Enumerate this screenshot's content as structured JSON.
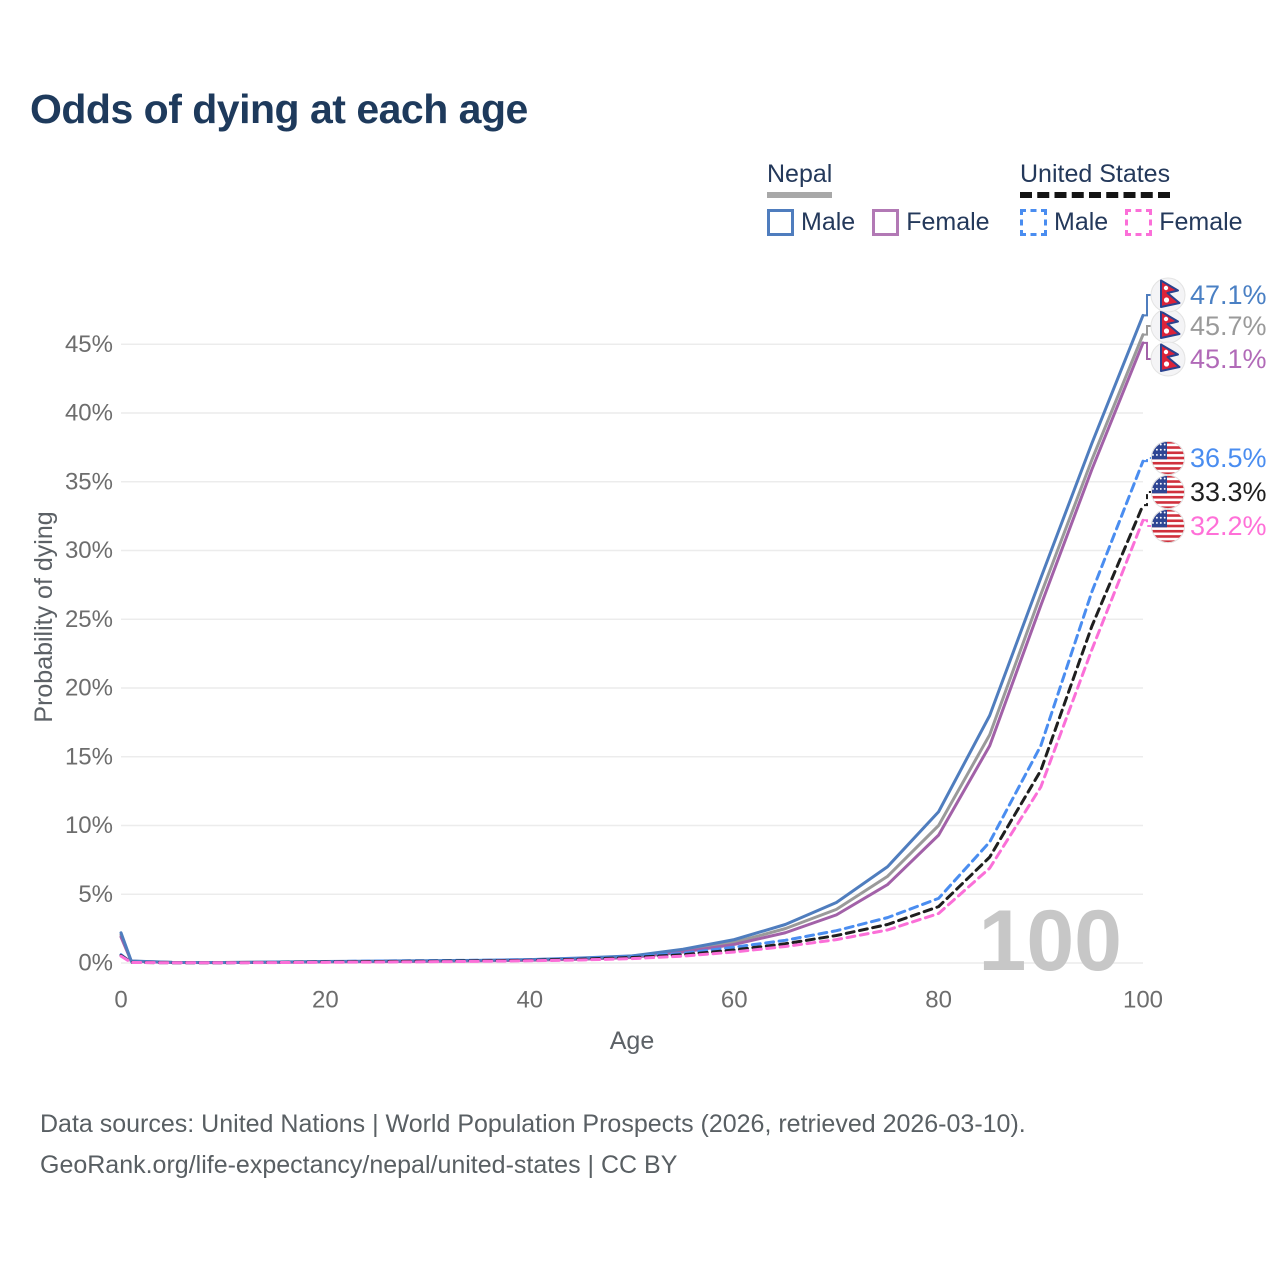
{
  "title": "Odds of dying at each age",
  "legend": {
    "groups": [
      {
        "label": "Nepal",
        "underline": "solid",
        "items": [
          {
            "label": "Male",
            "style": "solid",
            "color": "#4f7dbe"
          },
          {
            "label": "Female",
            "style": "solid",
            "color": "#b279b5"
          }
        ]
      },
      {
        "label": "United States",
        "underline": "dashed",
        "items": [
          {
            "label": "Male",
            "style": "dashed",
            "color": "#4a8df0"
          },
          {
            "label": "Female",
            "style": "dashed",
            "color": "#fb6fd8"
          }
        ]
      }
    ]
  },
  "chart_data": {
    "type": "line",
    "title": "Odds of dying at each age",
    "xlabel": "Age",
    "ylabel": "Probability of dying",
    "xlim": [
      0,
      100
    ],
    "ylim_pct": [
      0,
      48
    ],
    "x_ticks": [
      0,
      20,
      40,
      60,
      80,
      100
    ],
    "y_ticks_pct": [
      0,
      5,
      10,
      15,
      20,
      25,
      30,
      35,
      40,
      45
    ],
    "grid": "horizontal-only",
    "legend_position": "top-right",
    "watermark": "100",
    "watermark_color": "#c7c7c7",
    "ages": [
      0,
      1,
      5,
      10,
      15,
      20,
      25,
      30,
      35,
      40,
      45,
      50,
      55,
      60,
      65,
      70,
      75,
      80,
      85,
      90,
      95,
      100
    ],
    "series": [
      {
        "id": "nepal-total",
        "name": "Nepal",
        "country": "Nepal",
        "sex": "Total",
        "color": "#9a9a9a",
        "label_color": "#9a9a9a",
        "dash": false,
        "flag": "nepal",
        "end_label": "45.7%",
        "values": [
          2.05,
          0.14,
          0.05,
          0.04,
          0.06,
          0.09,
          0.12,
          0.14,
          0.17,
          0.22,
          0.31,
          0.45,
          0.9,
          1.5,
          2.5,
          3.9,
          6.3,
          10.0,
          16.6,
          26.8,
          36.6,
          45.7
        ]
      },
      {
        "id": "nepal-female",
        "name": "Nepal Female",
        "country": "Nepal",
        "sex": "Female",
        "color": "#a261a8",
        "label_color": "#b16ab8",
        "dash": false,
        "flag": "nepal",
        "end_label": "45.1%",
        "values": [
          1.9,
          0.13,
          0.04,
          0.03,
          0.05,
          0.08,
          0.1,
          0.12,
          0.15,
          0.2,
          0.27,
          0.4,
          0.8,
          1.35,
          2.2,
          3.5,
          5.7,
          9.3,
          15.8,
          26.0,
          35.9,
          45.1
        ]
      },
      {
        "id": "nepal-male",
        "name": "Nepal Male",
        "country": "Nepal",
        "sex": "Male",
        "color": "#4f7dbe",
        "label_color": "#4a80c4",
        "dash": false,
        "flag": "nepal",
        "end_label": "47.1%",
        "values": [
          2.2,
          0.15,
          0.05,
          0.04,
          0.07,
          0.11,
          0.14,
          0.16,
          0.19,
          0.25,
          0.36,
          0.52,
          1.0,
          1.7,
          2.8,
          4.4,
          7.0,
          11.0,
          18.0,
          28.0,
          37.8,
          47.1
        ]
      },
      {
        "id": "us-male",
        "name": "United States Male",
        "country": "United States",
        "sex": "Male",
        "color": "#4a8df0",
        "label_color": "#4a8df0",
        "dash": true,
        "flag": "us",
        "end_label": "36.5%",
        "values": [
          0.6,
          0.05,
          0.02,
          0.02,
          0.05,
          0.1,
          0.14,
          0.17,
          0.2,
          0.24,
          0.33,
          0.47,
          0.7,
          1.15,
          1.65,
          2.35,
          3.3,
          4.7,
          8.8,
          15.8,
          27.0,
          36.5
        ]
      },
      {
        "id": "us-total",
        "name": "United States",
        "country": "United States",
        "sex": "Total",
        "color": "#1f1f1f",
        "label_color": "#1f1f1f",
        "dash": true,
        "flag": "us",
        "end_label": "33.3%",
        "values": [
          0.55,
          0.045,
          0.02,
          0.02,
          0.04,
          0.08,
          0.11,
          0.13,
          0.16,
          0.2,
          0.28,
          0.4,
          0.6,
          0.95,
          1.4,
          2.0,
          2.8,
          4.1,
          7.7,
          14.0,
          24.5,
          33.3
        ]
      },
      {
        "id": "us-female",
        "name": "United States Female",
        "country": "United States",
        "sex": "Female",
        "color": "#fb6fd8",
        "label_color": "#ff70d8",
        "dash": true,
        "flag": "us",
        "end_label": "32.2%",
        "values": [
          0.5,
          0.04,
          0.015,
          0.015,
          0.03,
          0.05,
          0.07,
          0.09,
          0.12,
          0.16,
          0.22,
          0.32,
          0.5,
          0.8,
          1.2,
          1.7,
          2.4,
          3.6,
          6.9,
          12.8,
          22.8,
          32.2
        ]
      }
    ]
  },
  "footer": {
    "line1": "Data sources: United Nations | World Population Prospects (2026, retrieved 2026-03-10).",
    "line2": "GeoRank.org/life-expectancy/nepal/united-states | CC BY"
  }
}
